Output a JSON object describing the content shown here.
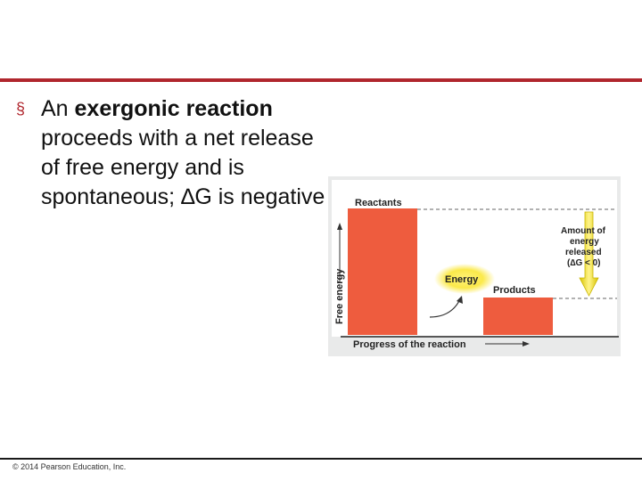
{
  "slide": {
    "bullet_marker": "§",
    "bullet_prefix": "An ",
    "bullet_bold": "exergonic reaction",
    "bullet_rest": " proceeds with a net release of free energy and is spontaneous; ∆G is negative",
    "footer": "© 2014 Pearson Education, Inc.",
    "accent_color": "#b0262d"
  },
  "diagram": {
    "reactants_label": "Reactants",
    "products_label": "Products",
    "energy_label": "Energy",
    "y_axis_label": "Free energy",
    "x_axis_label": "Progress of the reaction",
    "released_line1": "Amount of",
    "released_line2": "energy",
    "released_line3": "released",
    "released_line4": "(∆G < 0)",
    "bar_color": "#ee5c3e",
    "arrow_color": "#f2e41a"
  }
}
